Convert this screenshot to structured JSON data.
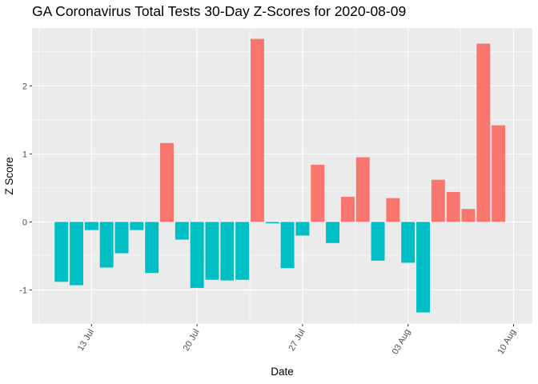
{
  "chart_data": {
    "type": "bar",
    "title": "GA Coronavirus Total Tests 30-Day Z-Scores for 2020-08-09",
    "xlabel": "Date",
    "ylabel": "Z Score",
    "x_ticks": [
      "13 Jul",
      "20 Jul",
      "27 Jul",
      "03 Aug",
      "10 Aug"
    ],
    "y_ticks": [
      -1,
      0,
      1,
      2
    ],
    "ylim": [
      -1.5,
      2.85
    ],
    "grid": true,
    "legend": "none",
    "positive_color": "#F8766D",
    "negative_color": "#00BFC4",
    "panel_color": "#EBEBEB",
    "dates": [
      "2020-07-11",
      "2020-07-12",
      "2020-07-13",
      "2020-07-14",
      "2020-07-15",
      "2020-07-16",
      "2020-07-17",
      "2020-07-18",
      "2020-07-19",
      "2020-07-20",
      "2020-07-21",
      "2020-07-22",
      "2020-07-23",
      "2020-07-24",
      "2020-07-25",
      "2020-07-26",
      "2020-07-27",
      "2020-07-28",
      "2020-07-29",
      "2020-07-30",
      "2020-07-31",
      "2020-08-01",
      "2020-08-02",
      "2020-08-03",
      "2020-08-04",
      "2020-08-05",
      "2020-08-06",
      "2020-08-07",
      "2020-08-08",
      "2020-08-09"
    ],
    "values": [
      -0.88,
      -0.93,
      -0.12,
      -0.67,
      -0.46,
      -0.12,
      -0.75,
      1.16,
      -0.26,
      -0.97,
      -0.85,
      -0.86,
      -0.85,
      2.69,
      -0.02,
      -0.68,
      -0.2,
      0.84,
      -0.31,
      0.37,
      0.95,
      -0.57,
      0.35,
      -0.6,
      -1.33,
      0.62,
      0.44,
      0.19,
      2.62,
      1.42
    ]
  }
}
